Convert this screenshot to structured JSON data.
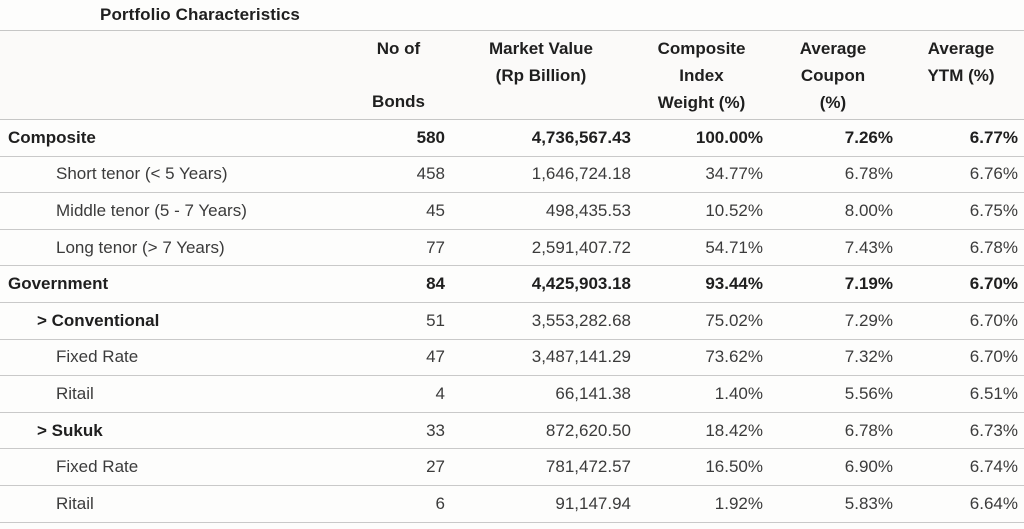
{
  "colors": {
    "grid_line": "#c9c9c9",
    "text_regular": "#3b3b3b",
    "text_bold": "#1f1f1f",
    "background": "#fdfdfc"
  },
  "chart_data": {
    "type": "table",
    "title": "Portfolio Characteristics",
    "columns": [
      {
        "key": "label",
        "header_lines": [],
        "align": "left"
      },
      {
        "key": "bonds",
        "header_lines": [
          "No of",
          "Bonds"
        ],
        "align": "right",
        "header_layout": "spread"
      },
      {
        "key": "market",
        "header_lines": [
          "Market Value",
          "(Rp Billion)"
        ],
        "align": "right"
      },
      {
        "key": "weight",
        "header_lines": [
          "Composite",
          "Index",
          "Weight (%)"
        ],
        "align": "right"
      },
      {
        "key": "coupon",
        "header_lines": [
          "Average",
          "Coupon",
          "(%)"
        ],
        "align": "right"
      },
      {
        "key": "ytm",
        "header_lines": [
          "Average",
          "YTM (%)"
        ],
        "align": "right"
      }
    ],
    "rows": [
      {
        "label": "Composite",
        "indent": 0,
        "row_bold": true,
        "label_bold": true,
        "bonds": "580",
        "market": "4,736,567.43",
        "weight": "100.00%",
        "coupon": "7.26%",
        "ytm": "6.77%"
      },
      {
        "label": "Short tenor (< 5 Years)",
        "indent": 1,
        "row_bold": false,
        "label_bold": false,
        "bonds": "458",
        "market": "1,646,724.18",
        "weight": "34.77%",
        "coupon": "6.78%",
        "ytm": "6.76%"
      },
      {
        "label": "Middle tenor (5 - 7 Years)",
        "indent": 1,
        "row_bold": false,
        "label_bold": false,
        "bonds": "45",
        "market": "498,435.53",
        "weight": "10.52%",
        "coupon": "8.00%",
        "ytm": "6.75%"
      },
      {
        "label": "Long tenor (> 7 Years)",
        "indent": 1,
        "row_bold": false,
        "label_bold": false,
        "bonds": "77",
        "market": "2,591,407.72",
        "weight": "54.71%",
        "coupon": "7.43%",
        "ytm": "6.78%"
      },
      {
        "label": "Government",
        "indent": 0,
        "row_bold": true,
        "label_bold": true,
        "bonds": "84",
        "market": "4,425,903.18",
        "weight": "93.44%",
        "coupon": "7.19%",
        "ytm": "6.70%"
      },
      {
        "label": "> Conventional",
        "indent": 2,
        "row_bold": false,
        "label_bold": true,
        "bonds": "51",
        "market": "3,553,282.68",
        "weight": "75.02%",
        "coupon": "7.29%",
        "ytm": "6.70%"
      },
      {
        "label": "Fixed Rate",
        "indent": 1,
        "row_bold": false,
        "label_bold": false,
        "bonds": "47",
        "market": "3,487,141.29",
        "weight": "73.62%",
        "coupon": "7.32%",
        "ytm": "6.70%"
      },
      {
        "label": "Ritail",
        "indent": 1,
        "row_bold": false,
        "label_bold": false,
        "bonds": "4",
        "market": "66,141.38",
        "weight": "1.40%",
        "coupon": "5.56%",
        "ytm": "6.51%"
      },
      {
        "label": "> Sukuk",
        "indent": 2,
        "row_bold": false,
        "label_bold": true,
        "bonds": "33",
        "market": "872,620.50",
        "weight": "18.42%",
        "coupon": "6.78%",
        "ytm": "6.73%"
      },
      {
        "label": "Fixed Rate",
        "indent": 1,
        "row_bold": false,
        "label_bold": false,
        "bonds": "27",
        "market": "781,472.57",
        "weight": "16.50%",
        "coupon": "6.90%",
        "ytm": "6.74%"
      },
      {
        "label": "Ritail",
        "indent": 1,
        "row_bold": false,
        "label_bold": false,
        "bonds": "6",
        "market": "91,147.94",
        "weight": "1.92%",
        "coupon": "5.83%",
        "ytm": "6.64%"
      }
    ]
  }
}
